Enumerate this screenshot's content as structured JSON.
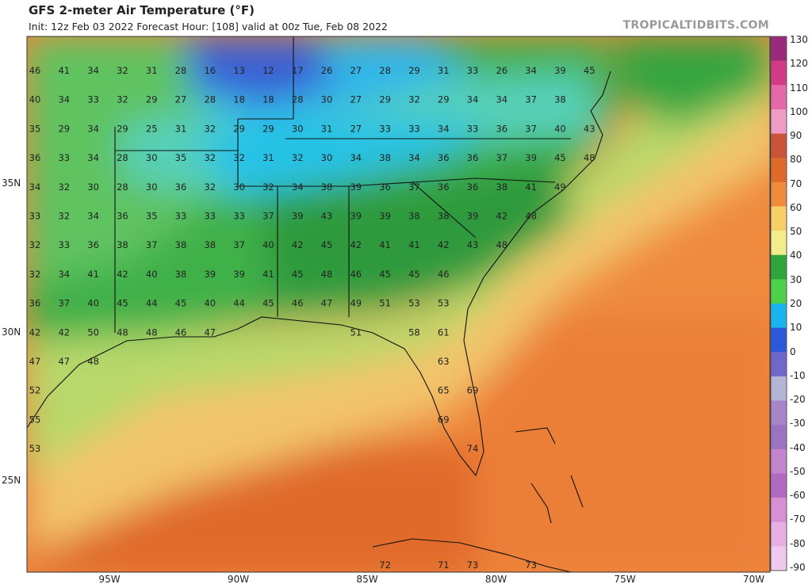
{
  "header": {
    "title": "GFS 2-meter Air Temperature (°F)",
    "subtitle": "Init: 12z Feb 03 2022   Forecast Hour: [108]   valid at 00z Tue, Feb 08 2022",
    "credit": "TROPICALTIDBITS.COM"
  },
  "axes": {
    "lat_labels": [
      {
        "text": "35N",
        "lat": 35
      },
      {
        "text": "30N",
        "lat": 30
      },
      {
        "text": "25N",
        "lat": 25
      }
    ],
    "lon_labels": [
      {
        "text": "95W",
        "lon": -95
      },
      {
        "text": "90W",
        "lon": -90
      },
      {
        "text": "85W",
        "lon": -85
      },
      {
        "text": "80W",
        "lon": -80
      },
      {
        "text": "75W",
        "lon": -75
      },
      {
        "text": "70W",
        "lon": -70
      }
    ]
  },
  "colorbar": {
    "labels": [
      "130",
      "120",
      "110",
      "100",
      "90",
      "80",
      "70",
      "60",
      "50",
      "40",
      "30",
      "20",
      "10",
      "0",
      "-10",
      "-20",
      "-30",
      "-40",
      "-50",
      "-60",
      "-70",
      "-80",
      "-90"
    ],
    "colors": [
      "#9c2a7a",
      "#d23c86",
      "#e36aa6",
      "#ee9cc4",
      "#c8553a",
      "#de6a2c",
      "#ee8c3c",
      "#f6cf66",
      "#f2ec8c",
      "#2fa63c",
      "#4ed14a",
      "#1ab5ee",
      "#2b58d6",
      "#7068c8",
      "#b4b4d4",
      "#a884c8",
      "#9a74c0",
      "#c484cc",
      "#b06ac0",
      "#d890d4",
      "#e8b0e2",
      "#f0c8ee"
    ]
  },
  "temperature_labels": [
    {
      "v": "46",
      "r": 0,
      "c": 0
    },
    {
      "v": "41",
      "r": 0,
      "c": 1
    },
    {
      "v": "34",
      "r": 0,
      "c": 2
    },
    {
      "v": "32",
      "r": 0,
      "c": 3
    },
    {
      "v": "31",
      "r": 0,
      "c": 4
    },
    {
      "v": "28",
      "r": 0,
      "c": 5
    },
    {
      "v": "16",
      "r": 0,
      "c": 6
    },
    {
      "v": "13",
      "r": 0,
      "c": 7
    },
    {
      "v": "12",
      "r": 0,
      "c": 8
    },
    {
      "v": "17",
      "r": 0,
      "c": 9
    },
    {
      "v": "26",
      "r": 0,
      "c": 10
    },
    {
      "v": "27",
      "r": 0,
      "c": 11
    },
    {
      "v": "28",
      "r": 0,
      "c": 12
    },
    {
      "v": "29",
      "r": 0,
      "c": 13
    },
    {
      "v": "31",
      "r": 0,
      "c": 14
    },
    {
      "v": "33",
      "r": 0,
      "c": 15
    },
    {
      "v": "26",
      "r": 0,
      "c": 16
    },
    {
      "v": "34",
      "r": 0,
      "c": 17
    },
    {
      "v": "39",
      "r": 0,
      "c": 18
    },
    {
      "v": "45",
      "r": 0,
      "c": 19
    },
    {
      "v": "40",
      "r": 1,
      "c": 0
    },
    {
      "v": "34",
      "r": 1,
      "c": 1
    },
    {
      "v": "33",
      "r": 1,
      "c": 2
    },
    {
      "v": "32",
      "r": 1,
      "c": 3
    },
    {
      "v": "29",
      "r": 1,
      "c": 4
    },
    {
      "v": "27",
      "r": 1,
      "c": 5
    },
    {
      "v": "28",
      "r": 1,
      "c": 6
    },
    {
      "v": "18",
      "r": 1,
      "c": 7
    },
    {
      "v": "18",
      "r": 1,
      "c": 8
    },
    {
      "v": "28",
      "r": 1,
      "c": 9
    },
    {
      "v": "30",
      "r": 1,
      "c": 10
    },
    {
      "v": "27",
      "r": 1,
      "c": 11
    },
    {
      "v": "29",
      "r": 1,
      "c": 12
    },
    {
      "v": "32",
      "r": 1,
      "c": 13
    },
    {
      "v": "29",
      "r": 1,
      "c": 14
    },
    {
      "v": "34",
      "r": 1,
      "c": 15
    },
    {
      "v": "34",
      "r": 1,
      "c": 16
    },
    {
      "v": "37",
      "r": 1,
      "c": 17
    },
    {
      "v": "38",
      "r": 1,
      "c": 18
    },
    {
      "v": "35",
      "r": 2,
      "c": 0
    },
    {
      "v": "29",
      "r": 2,
      "c": 1
    },
    {
      "v": "34",
      "r": 2,
      "c": 2
    },
    {
      "v": "29",
      "r": 2,
      "c": 3
    },
    {
      "v": "25",
      "r": 2,
      "c": 4
    },
    {
      "v": "31",
      "r": 2,
      "c": 5
    },
    {
      "v": "32",
      "r": 2,
      "c": 6
    },
    {
      "v": "29",
      "r": 2,
      "c": 7
    },
    {
      "v": "29",
      "r": 2,
      "c": 8
    },
    {
      "v": "30",
      "r": 2,
      "c": 9
    },
    {
      "v": "31",
      "r": 2,
      "c": 10
    },
    {
      "v": "27",
      "r": 2,
      "c": 11
    },
    {
      "v": "33",
      "r": 2,
      "c": 12
    },
    {
      "v": "33",
      "r": 2,
      "c": 13
    },
    {
      "v": "34",
      "r": 2,
      "c": 14
    },
    {
      "v": "33",
      "r": 2,
      "c": 15
    },
    {
      "v": "36",
      "r": 2,
      "c": 16
    },
    {
      "v": "37",
      "r": 2,
      "c": 17
    },
    {
      "v": "40",
      "r": 2,
      "c": 18
    },
    {
      "v": "43",
      "r": 2,
      "c": 19
    },
    {
      "v": "36",
      "r": 3,
      "c": 0
    },
    {
      "v": "33",
      "r": 3,
      "c": 1
    },
    {
      "v": "34",
      "r": 3,
      "c": 2
    },
    {
      "v": "28",
      "r": 3,
      "c": 3
    },
    {
      "v": "30",
      "r": 3,
      "c": 4
    },
    {
      "v": "35",
      "r": 3,
      "c": 5
    },
    {
      "v": "32",
      "r": 3,
      "c": 6
    },
    {
      "v": "32",
      "r": 3,
      "c": 7
    },
    {
      "v": "31",
      "r": 3,
      "c": 8
    },
    {
      "v": "32",
      "r": 3,
      "c": 9
    },
    {
      "v": "30",
      "r": 3,
      "c": 10
    },
    {
      "v": "34",
      "r": 3,
      "c": 11
    },
    {
      "v": "38",
      "r": 3,
      "c": 12
    },
    {
      "v": "34",
      "r": 3,
      "c": 13
    },
    {
      "v": "36",
      "r": 3,
      "c": 14
    },
    {
      "v": "36",
      "r": 3,
      "c": 15
    },
    {
      "v": "37",
      "r": 3,
      "c": 16
    },
    {
      "v": "39",
      "r": 3,
      "c": 17
    },
    {
      "v": "45",
      "r": 3,
      "c": 18
    },
    {
      "v": "48",
      "r": 3,
      "c": 19
    },
    {
      "v": "34",
      "r": 4,
      "c": 0
    },
    {
      "v": "32",
      "r": 4,
      "c": 1
    },
    {
      "v": "30",
      "r": 4,
      "c": 2
    },
    {
      "v": "28",
      "r": 4,
      "c": 3
    },
    {
      "v": "30",
      "r": 4,
      "c": 4
    },
    {
      "v": "36",
      "r": 4,
      "c": 5
    },
    {
      "v": "32",
      "r": 4,
      "c": 6
    },
    {
      "v": "30",
      "r": 4,
      "c": 7
    },
    {
      "v": "32",
      "r": 4,
      "c": 8
    },
    {
      "v": "34",
      "r": 4,
      "c": 9
    },
    {
      "v": "38",
      "r": 4,
      "c": 10
    },
    {
      "v": "39",
      "r": 4,
      "c": 11
    },
    {
      "v": "36",
      "r": 4,
      "c": 12
    },
    {
      "v": "37",
      "r": 4,
      "c": 13
    },
    {
      "v": "36",
      "r": 4,
      "c": 14
    },
    {
      "v": "36",
      "r": 4,
      "c": 15
    },
    {
      "v": "38",
      "r": 4,
      "c": 16
    },
    {
      "v": "41",
      "r": 4,
      "c": 17
    },
    {
      "v": "49",
      "r": 4,
      "c": 18
    },
    {
      "v": "33",
      "r": 5,
      "c": 0
    },
    {
      "v": "32",
      "r": 5,
      "c": 1
    },
    {
      "v": "34",
      "r": 5,
      "c": 2
    },
    {
      "v": "36",
      "r": 5,
      "c": 3
    },
    {
      "v": "35",
      "r": 5,
      "c": 4
    },
    {
      "v": "33",
      "r": 5,
      "c": 5
    },
    {
      "v": "33",
      "r": 5,
      "c": 6
    },
    {
      "v": "33",
      "r": 5,
      "c": 7
    },
    {
      "v": "37",
      "r": 5,
      "c": 8
    },
    {
      "v": "39",
      "r": 5,
      "c": 9
    },
    {
      "v": "43",
      "r": 5,
      "c": 10
    },
    {
      "v": "39",
      "r": 5,
      "c": 11
    },
    {
      "v": "39",
      "r": 5,
      "c": 12
    },
    {
      "v": "38",
      "r": 5,
      "c": 13
    },
    {
      "v": "38",
      "r": 5,
      "c": 14
    },
    {
      "v": "39",
      "r": 5,
      "c": 15
    },
    {
      "v": "42",
      "r": 5,
      "c": 16
    },
    {
      "v": "48",
      "r": 5,
      "c": 17
    },
    {
      "v": "32",
      "r": 6,
      "c": 0
    },
    {
      "v": "33",
      "r": 6,
      "c": 1
    },
    {
      "v": "36",
      "r": 6,
      "c": 2
    },
    {
      "v": "38",
      "r": 6,
      "c": 3
    },
    {
      "v": "37",
      "r": 6,
      "c": 4
    },
    {
      "v": "38",
      "r": 6,
      "c": 5
    },
    {
      "v": "38",
      "r": 6,
      "c": 6
    },
    {
      "v": "37",
      "r": 6,
      "c": 7
    },
    {
      "v": "40",
      "r": 6,
      "c": 8
    },
    {
      "v": "42",
      "r": 6,
      "c": 9
    },
    {
      "v": "45",
      "r": 6,
      "c": 10
    },
    {
      "v": "42",
      "r": 6,
      "c": 11
    },
    {
      "v": "41",
      "r": 6,
      "c": 12
    },
    {
      "v": "41",
      "r": 6,
      "c": 13
    },
    {
      "v": "42",
      "r": 6,
      "c": 14
    },
    {
      "v": "43",
      "r": 6,
      "c": 15
    },
    {
      "v": "48",
      "r": 6,
      "c": 16
    },
    {
      "v": "32",
      "r": 7,
      "c": 0
    },
    {
      "v": "34",
      "r": 7,
      "c": 1
    },
    {
      "v": "41",
      "r": 7,
      "c": 2
    },
    {
      "v": "42",
      "r": 7,
      "c": 3
    },
    {
      "v": "40",
      "r": 7,
      "c": 4
    },
    {
      "v": "38",
      "r": 7,
      "c": 5
    },
    {
      "v": "39",
      "r": 7,
      "c": 6
    },
    {
      "v": "39",
      "r": 7,
      "c": 7
    },
    {
      "v": "41",
      "r": 7,
      "c": 8
    },
    {
      "v": "45",
      "r": 7,
      "c": 9
    },
    {
      "v": "48",
      "r": 7,
      "c": 10
    },
    {
      "v": "46",
      "r": 7,
      "c": 11
    },
    {
      "v": "45",
      "r": 7,
      "c": 12
    },
    {
      "v": "45",
      "r": 7,
      "c": 13
    },
    {
      "v": "46",
      "r": 7,
      "c": 14
    },
    {
      "v": "36",
      "r": 8,
      "c": 0
    },
    {
      "v": "37",
      "r": 8,
      "c": 1
    },
    {
      "v": "40",
      "r": 8,
      "c": 2
    },
    {
      "v": "45",
      "r": 8,
      "c": 3
    },
    {
      "v": "44",
      "r": 8,
      "c": 4
    },
    {
      "v": "45",
      "r": 8,
      "c": 5
    },
    {
      "v": "40",
      "r": 8,
      "c": 6
    },
    {
      "v": "44",
      "r": 8,
      "c": 7
    },
    {
      "v": "45",
      "r": 8,
      "c": 8
    },
    {
      "v": "46",
      "r": 8,
      "c": 9
    },
    {
      "v": "47",
      "r": 8,
      "c": 10
    },
    {
      "v": "49",
      "r": 8,
      "c": 11
    },
    {
      "v": "51",
      "r": 8,
      "c": 12
    },
    {
      "v": "53",
      "r": 8,
      "c": 13
    },
    {
      "v": "53",
      "r": 8,
      "c": 14
    },
    {
      "v": "42",
      "r": 9,
      "c": 0
    },
    {
      "v": "42",
      "r": 9,
      "c": 1
    },
    {
      "v": "50",
      "r": 9,
      "c": 2
    },
    {
      "v": "48",
      "r": 9,
      "c": 3
    },
    {
      "v": "48",
      "r": 9,
      "c": 4
    },
    {
      "v": "46",
      "r": 9,
      "c": 5
    },
    {
      "v": "47",
      "r": 9,
      "c": 6
    },
    {
      "v": "51",
      "r": 9,
      "c": 11
    },
    {
      "v": "58",
      "r": 9,
      "c": 13
    },
    {
      "v": "61",
      "r": 9,
      "c": 14
    },
    {
      "v": "47",
      "r": 10,
      "c": 0
    },
    {
      "v": "47",
      "r": 10,
      "c": 1
    },
    {
      "v": "48",
      "r": 10,
      "c": 2
    },
    {
      "v": "63",
      "r": 10,
      "c": 14
    },
    {
      "v": "52",
      "r": 11,
      "c": 0
    },
    {
      "v": "65",
      "r": 11,
      "c": 14
    },
    {
      "v": "69",
      "r": 11,
      "c": 15
    },
    {
      "v": "55",
      "r": 12,
      "c": 0
    },
    {
      "v": "69",
      "r": 12,
      "c": 14
    },
    {
      "v": "53",
      "r": 13,
      "c": 0
    },
    {
      "v": "74",
      "r": 13,
      "c": 15
    },
    {
      "v": "72",
      "r": 17,
      "c": 12
    },
    {
      "v": "71",
      "r": 17,
      "c": 14
    },
    {
      "v": "73",
      "r": 17,
      "c": 15
    },
    {
      "v": "73",
      "r": 17,
      "c": 17
    }
  ]
}
